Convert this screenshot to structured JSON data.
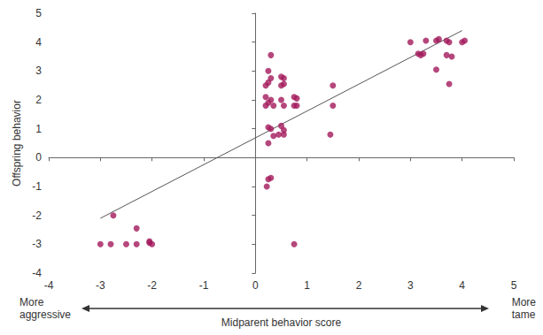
{
  "chart_data": {
    "type": "scatter",
    "x_label": "Midparent behavior score",
    "y_label": "Offspring behavior",
    "x_left_label": "More aggressive",
    "x_right_label": "More tame",
    "color": "#a3195b",
    "marker": "circle",
    "grid": false,
    "xlim": [
      -4,
      5
    ],
    "xticks": [
      -4,
      -3,
      -2,
      -1,
      0,
      1,
      2,
      3,
      4,
      5
    ],
    "ylim": [
      -4,
      5
    ],
    "yticks": [
      -4,
      -3,
      -2,
      -1,
      0,
      1,
      2,
      3,
      4,
      5
    ],
    "x": [
      -3,
      -2.8,
      -2.5,
      -2.3,
      -2.05,
      -2.0,
      -2.05,
      -2.75,
      -2.3,
      0.3,
      0.25,
      0.3,
      0.25,
      0.2,
      0.5,
      0.55,
      0.5,
      0.55,
      0.2,
      0.3,
      0.25,
      0.2,
      0.35,
      0.5,
      0.55,
      0.75,
      0.8,
      0.75,
      0.8,
      0.25,
      0.3,
      0.5,
      0.55,
      0.45,
      0.55,
      0.35,
      0.25,
      0.3,
      0.25,
      0.22,
      0.75,
      1.5,
      1.5,
      1.45,
      3.0,
      3.2,
      3.3,
      3.25,
      3.5,
      3.55,
      3.5,
      3.7,
      3.75,
      3.7,
      3.8,
      3.75,
      4.0,
      4.05,
      3.15
    ],
    "values": [
      -3,
      -3,
      -3,
      -3,
      -2.95,
      -3,
      -2.9,
      -2,
      -2.45,
      3.55,
      3.0,
      2.75,
      2.6,
      2.5,
      2.8,
      2.75,
      2.5,
      2.55,
      2.1,
      2.0,
      1.9,
      1.8,
      1.8,
      2.0,
      1.8,
      2.1,
      2.05,
      1.8,
      1.8,
      1.05,
      1.0,
      1.1,
      0.95,
      0.8,
      0.8,
      0.75,
      0.5,
      -0.7,
      -0.75,
      -1.0,
      -3.0,
      2.5,
      1.8,
      0.8,
      4.0,
      3.55,
      4.05,
      3.6,
      4.05,
      4.1,
      3.05,
      4.05,
      4.0,
      3.55,
      3.5,
      2.55,
      4.0,
      4.05,
      3.6
    ],
    "trend_line": {
      "x": [
        -3,
        4
      ],
      "y": [
        -2.1,
        4.4
      ],
      "color": "#555555"
    }
  }
}
